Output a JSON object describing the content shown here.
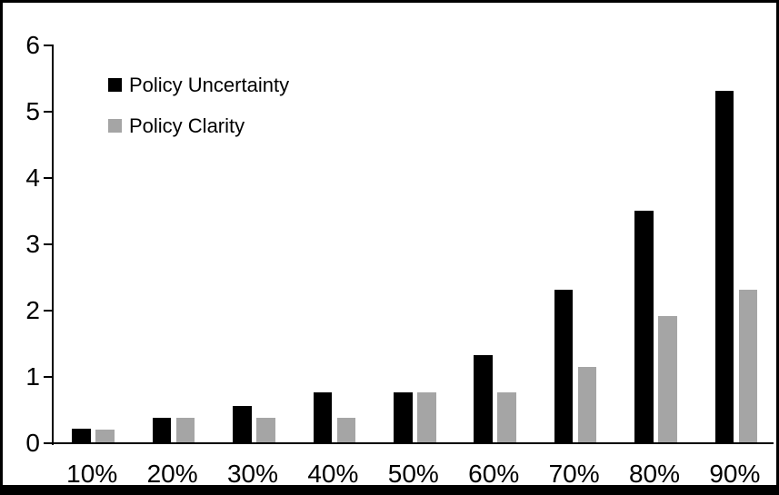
{
  "chart_data": {
    "type": "bar",
    "title": "",
    "xlabel": "",
    "ylabel": "",
    "categories": [
      "10%",
      "20%",
      "30%",
      "40%",
      "50%",
      "60%",
      "70%",
      "80%",
      "90%"
    ],
    "series": [
      {
        "name": "Policy Uncertainty",
        "color": "#000000",
        "values": [
          0.2,
          0.37,
          0.55,
          0.75,
          0.76,
          1.32,
          2.3,
          3.5,
          5.3
        ]
      },
      {
        "name": "Policy Clarity",
        "color": "#a5a5a5",
        "values": [
          0.19,
          0.37,
          0.37,
          0.37,
          0.75,
          0.76,
          1.14,
          1.9,
          2.3
        ]
      }
    ],
    "ylim": [
      0,
      6
    ],
    "yticks": [
      0,
      1,
      2,
      3,
      4,
      5,
      6
    ],
    "grid": false,
    "legend_position": "top-left-inside"
  },
  "colors": {
    "background": "#ffffff",
    "frame": "#000000",
    "axis": "#000000",
    "text": "#000000"
  }
}
